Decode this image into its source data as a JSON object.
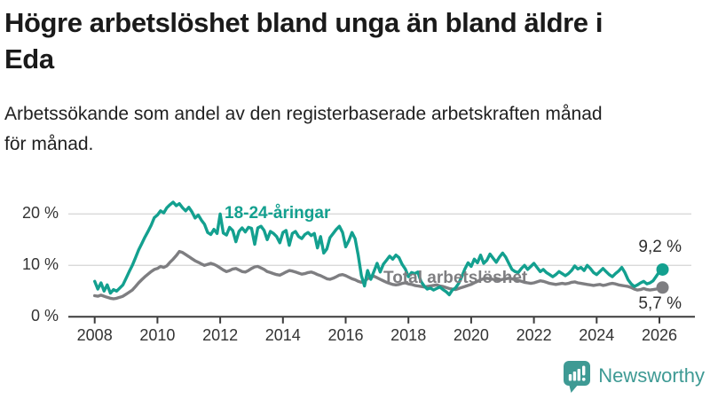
{
  "header": {
    "title_lines": [
      "Högre arbetslöshet bland unga än bland äldre i",
      "Eda"
    ],
    "subtitle_lines": [
      "Arbetssökande som andel av den registerbaserade arbetskraften månad",
      "för månad."
    ]
  },
  "chart_data": {
    "type": "line",
    "title": "Högre arbetslöshet bland unga än bland äldre i Eda",
    "subtitle": "Arbetssökande som andel av den registerbaserade arbetskraften månad för månad.",
    "x_start": 2008.0,
    "x_step": 0.1,
    "x_ticks": [
      2008,
      2010,
      2012,
      2014,
      2016,
      2018,
      2020,
      2022,
      2024,
      2026
    ],
    "ylim": [
      0,
      24
    ],
    "yticks": [
      0,
      10,
      20
    ],
    "ytick_labels": [
      "0 %",
      "10 %",
      "20 %"
    ],
    "grid": "horizontal-gridlines-at-10-and-20",
    "legend": "inline-series-labels",
    "series": [
      {
        "name": "18-24-åringar",
        "color": "#13a08f",
        "end_label": "9,2 %",
        "end_value": 9.2,
        "values": [
          6.9,
          5.4,
          6.6,
          5.0,
          6.2,
          4.6,
          5.3,
          5.0,
          5.6,
          6.2,
          7.5,
          8.8,
          10.0,
          11.5,
          13.0,
          14.2,
          15.5,
          16.6,
          17.8,
          19.3,
          19.8,
          20.6,
          20.2,
          21.2,
          21.8,
          22.3,
          21.6,
          22.0,
          21.2,
          20.6,
          21.3,
          20.4,
          19.2,
          19.8,
          18.8,
          18.0,
          16.4,
          16.0,
          17.0,
          16.2,
          20.0,
          16.3,
          15.9,
          17.4,
          16.8,
          14.6,
          16.6,
          17.3,
          16.5,
          17.4,
          17.2,
          14.1,
          17.3,
          17.6,
          16.8,
          15.0,
          16.6,
          16.2,
          15.6,
          14.4,
          16.4,
          16.8,
          13.9,
          16.2,
          16.6,
          15.6,
          15.2,
          16.0,
          16.4,
          15.8,
          16.2,
          13.4,
          15.6,
          12.4,
          13.2,
          15.4,
          16.2,
          17.0,
          17.6,
          16.4,
          13.6,
          14.8,
          16.4,
          15.2,
          12.0,
          8.0,
          6.0,
          9.0,
          7.3,
          8.8,
          10.4,
          8.7,
          10.2,
          11.0,
          11.8,
          11.2,
          12.0,
          11.5,
          10.2,
          9.3,
          7.8,
          8.6,
          8.4,
          8.7,
          6.9,
          6.0,
          5.4,
          5.6,
          5.2,
          5.5,
          5.8,
          5.3,
          4.9,
          4.3,
          5.2,
          5.6,
          6.5,
          7.8,
          9.3,
          10.5,
          9.8,
          11.2,
          10.5,
          12.0,
          10.4,
          11.0,
          12.2,
          11.4,
          10.6,
          11.6,
          12.4,
          11.6,
          10.4,
          9.2,
          8.8,
          8.6,
          9.4,
          10.0,
          9.2,
          9.8,
          10.4,
          9.6,
          8.8,
          9.2,
          8.6,
          8.2,
          7.8,
          8.2,
          8.8,
          8.4,
          8.0,
          8.4,
          9.0,
          9.9,
          9.3,
          9.6,
          9.0,
          10.0,
          9.4,
          8.6,
          8.2,
          8.8,
          9.4,
          8.8,
          8.2,
          7.8,
          8.4,
          8.9,
          9.6,
          8.6,
          7.2,
          6.4,
          5.9,
          6.2,
          6.6,
          6.9,
          6.4,
          6.6,
          7.0,
          7.9,
          8.8,
          9.2
        ]
      },
      {
        "name": "Total arbetslöshet",
        "color": "#7e7e81",
        "end_label": "5,7 %",
        "end_value": 5.7,
        "values": [
          4.1,
          4.0,
          4.2,
          4.0,
          3.8,
          3.6,
          3.5,
          3.6,
          3.8,
          4.0,
          4.4,
          4.8,
          5.2,
          5.9,
          6.6,
          7.2,
          7.8,
          8.3,
          8.8,
          9.2,
          9.4,
          9.8,
          9.6,
          9.9,
          10.6,
          11.2,
          11.9,
          12.7,
          12.5,
          12.1,
          11.7,
          11.3,
          10.9,
          10.6,
          10.3,
          10.0,
          10.2,
          10.4,
          10.2,
          9.9,
          9.5,
          9.1,
          8.8,
          9.0,
          9.3,
          9.4,
          9.1,
          8.8,
          8.7,
          9.0,
          9.4,
          9.7,
          9.8,
          9.5,
          9.2,
          8.8,
          8.6,
          8.4,
          8.2,
          8.1,
          8.4,
          8.7,
          9.0,
          8.9,
          8.7,
          8.5,
          8.3,
          8.4,
          8.6,
          8.7,
          8.5,
          8.2,
          8.0,
          7.7,
          7.4,
          7.3,
          7.5,
          7.8,
          8.1,
          8.2,
          8.0,
          7.7,
          7.4,
          7.2,
          6.9,
          6.7,
          7.0,
          7.4,
          7.7,
          7.9,
          7.6,
          7.3,
          7.0,
          6.7,
          6.5,
          6.3,
          6.2,
          6.3,
          6.5,
          6.6,
          6.4,
          6.3,
          6.1,
          6.0,
          5.9,
          5.8,
          5.9,
          6.0,
          6.1,
          6.2,
          6.0,
          5.9,
          5.7,
          5.5,
          5.4,
          5.3,
          5.5,
          5.7,
          5.9,
          6.1,
          6.3,
          6.6,
          6.9,
          7.2,
          7.4,
          7.5,
          7.4,
          7.3,
          7.2,
          7.1,
          7.3,
          7.4,
          7.5,
          7.4,
          7.2,
          7.1,
          6.9,
          6.7,
          6.6,
          6.5,
          6.6,
          6.8,
          7.0,
          6.9,
          6.7,
          6.5,
          6.4,
          6.3,
          6.4,
          6.5,
          6.4,
          6.5,
          6.7,
          6.8,
          6.6,
          6.5,
          6.4,
          6.3,
          6.2,
          6.1,
          6.2,
          6.3,
          6.1,
          6.2,
          6.4,
          6.5,
          6.4,
          6.2,
          6.1,
          6.0,
          5.9,
          5.7,
          5.4,
          5.2,
          5.3,
          5.5,
          5.3,
          5.2,
          5.3,
          5.4,
          5.5,
          5.7
        ]
      }
    ]
  },
  "footer": {
    "brand": "Newsworthy"
  },
  "colors": {
    "teal": "#13a08f",
    "gray": "#7e7e81",
    "brand": "#3e9a94",
    "grid": "#d9d9d9",
    "axis": "#3c3c3c",
    "text": "#1a1a1a"
  }
}
